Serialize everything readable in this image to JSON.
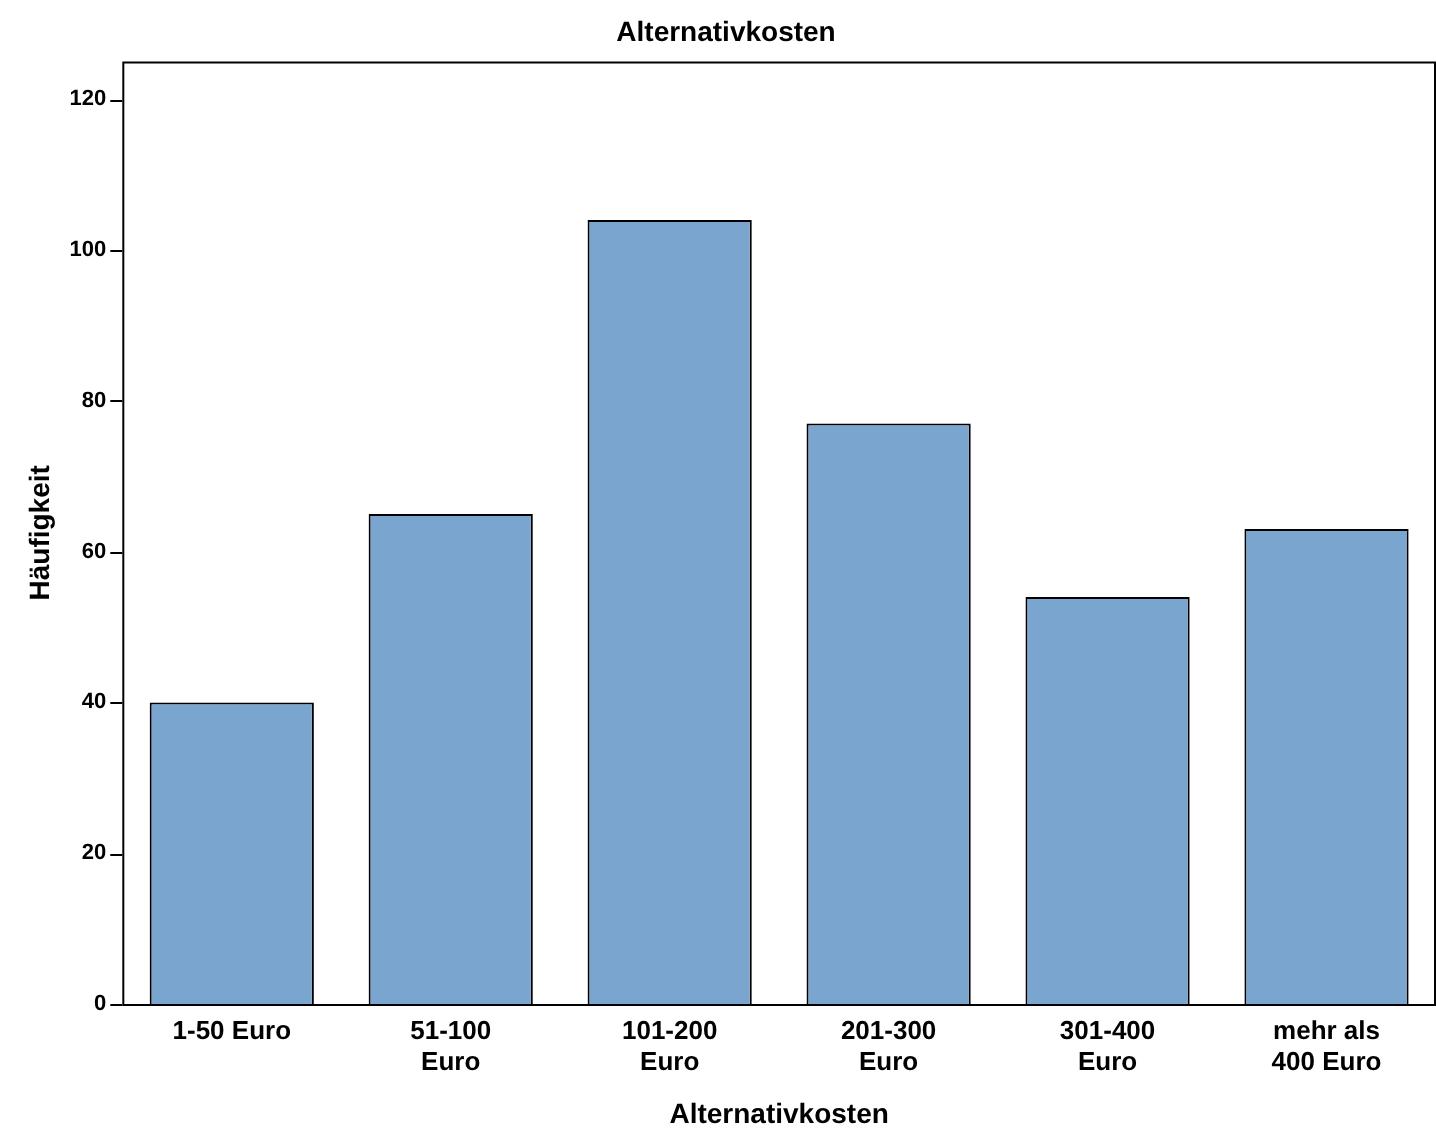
{
  "chart_data": {
    "type": "bar",
    "title": "Alternativkosten",
    "xlabel": "Alternativkosten",
    "ylabel": "Häufigkeit",
    "categories": [
      "1-50 Euro",
      "51-100 Euro",
      "101-200 Euro",
      "201-300 Euro",
      "301-400 Euro",
      "mehr als 400 Euro"
    ],
    "values": [
      40,
      65,
      104,
      77,
      54,
      63
    ],
    "color": "#79a5cf",
    "ylim": [
      0,
      125
    ],
    "yticks": [
      0,
      20,
      40,
      60,
      80,
      100,
      120
    ],
    "grid": false,
    "legend": false
  }
}
